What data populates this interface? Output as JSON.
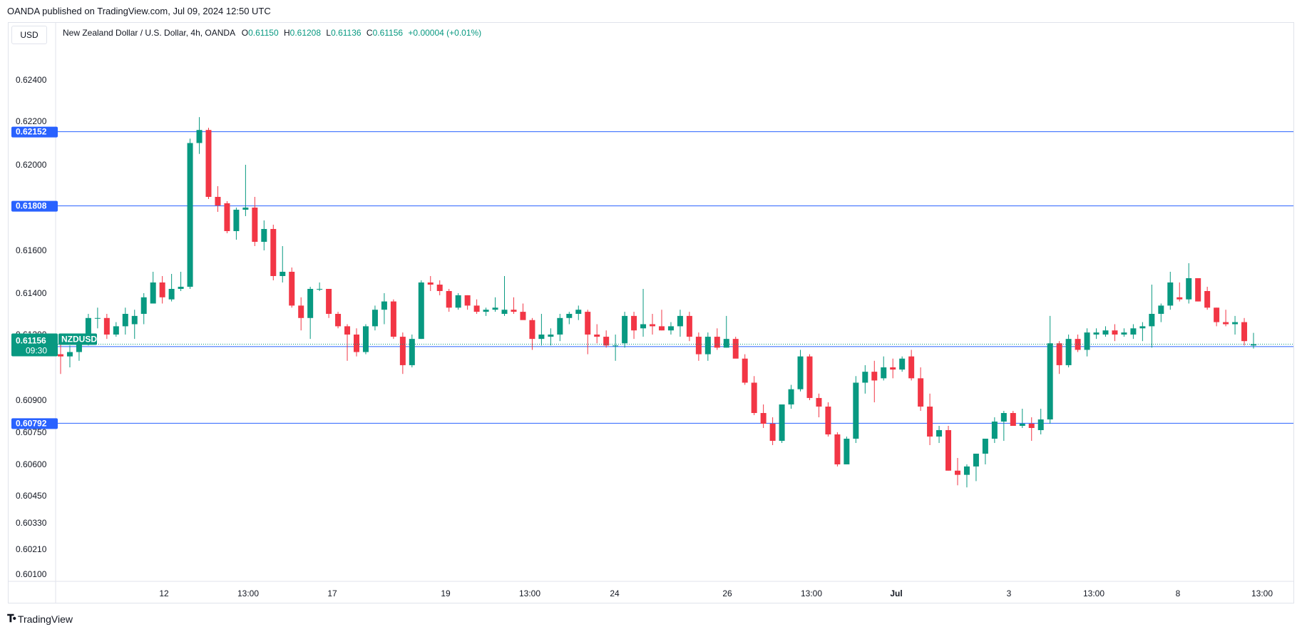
{
  "header": {
    "published": "OANDA published on TradingView.com, Jul 09, 2024 12:50 UTC",
    "currency": "USD",
    "legend": {
      "instrument": "New Zealand Dollar / U.S. Dollar, 4h, OANDA",
      "open_label": "O",
      "open": "0.61150",
      "high_label": "H",
      "high": "0.61208",
      "low_label": "L",
      "low": "0.61136",
      "close_label": "C",
      "close": "0.61156",
      "change": "+0.00004 (+0.01%)"
    }
  },
  "footer": {
    "brand": "TradingView",
    "brand_icon": "tradingview-logo-icon"
  },
  "colors": {
    "up": "#089981",
    "down": "#f23645",
    "level": "#2962ff",
    "grid": "#e0e3eb"
  },
  "chart_data": {
    "type": "candlestick",
    "symbol": "NZDUSD",
    "timeframe": "4h",
    "y_ticks": [
      "0.62400",
      "0.62200",
      "0.62000",
      "0.61600",
      "0.61400",
      "0.61200",
      "0.60900",
      "0.60750",
      "0.60600",
      "0.60450",
      "0.60330",
      "0.60210",
      "0.60100"
    ],
    "x_ticks": [
      "12",
      "13:00",
      "17",
      "19",
      "13:00",
      "24",
      "26",
      "13:00",
      "Jul",
      "3",
      "13:00",
      "8",
      "13:00"
    ],
    "levels": [
      "0.62152",
      "0.61808",
      "0.61145",
      "0.60792"
    ],
    "last_price": {
      "symbol": "NZDUSD",
      "price": "0.61156",
      "countdown": "09:30"
    },
    "candles": [
      [
        0.6111,
        0.6116,
        0.6102,
        0.611
      ],
      [
        0.611,
        0.6115,
        0.6105,
        0.6112
      ],
      [
        0.6112,
        0.612,
        0.6108,
        0.6118
      ],
      [
        0.6118,
        0.613,
        0.6115,
        0.6128
      ],
      [
        0.6128,
        0.6133,
        0.6123,
        0.6128
      ],
      [
        0.6128,
        0.613,
        0.6118,
        0.612
      ],
      [
        0.612,
        0.6126,
        0.6119,
        0.6124
      ],
      [
        0.6124,
        0.6133,
        0.612,
        0.613
      ],
      [
        0.6125,
        0.6132,
        0.6118,
        0.6129
      ],
      [
        0.613,
        0.614,
        0.6125,
        0.6138
      ],
      [
        0.6135,
        0.615,
        0.6135,
        0.6145
      ],
      [
        0.6145,
        0.6148,
        0.6135,
        0.6138
      ],
      [
        0.6137,
        0.6149,
        0.6136,
        0.6142
      ],
      [
        0.6142,
        0.615,
        0.6141,
        0.6143
      ],
      [
        0.6143,
        0.6212,
        0.6142,
        0.621
      ],
      [
        0.621,
        0.6222,
        0.6205,
        0.6216
      ],
      [
        0.6216,
        0.6217,
        0.6184,
        0.6185
      ],
      [
        0.6185,
        0.619,
        0.6178,
        0.6181
      ],
      [
        0.6182,
        0.6183,
        0.6168,
        0.6169
      ],
      [
        0.6169,
        0.618,
        0.6165,
        0.6179
      ],
      [
        0.6179,
        0.62,
        0.6176,
        0.618
      ],
      [
        0.618,
        0.6185,
        0.6162,
        0.6164
      ],
      [
        0.6164,
        0.6174,
        0.616,
        0.617
      ],
      [
        0.617,
        0.6172,
        0.6146,
        0.6148
      ],
      [
        0.6148,
        0.6162,
        0.6145,
        0.615
      ],
      [
        0.615,
        0.6152,
        0.6133,
        0.6134
      ],
      [
        0.6134,
        0.6138,
        0.6122,
        0.6128
      ],
      [
        0.6128,
        0.6143,
        0.6118,
        0.6142
      ],
      [
        0.6142,
        0.6145,
        0.6141,
        0.6142
      ],
      [
        0.6142,
        0.6142,
        0.6128,
        0.613
      ],
      [
        0.613,
        0.6131,
        0.6123,
        0.6124
      ],
      [
        0.6124,
        0.6125,
        0.6108,
        0.612
      ],
      [
        0.612,
        0.6123,
        0.611,
        0.6112
      ],
      [
        0.6112,
        0.6125,
        0.6111,
        0.6124
      ],
      [
        0.6124,
        0.6134,
        0.6122,
        0.6132
      ],
      [
        0.6132,
        0.614,
        0.6125,
        0.6136
      ],
      [
        0.6136,
        0.6137,
        0.6118,
        0.6119
      ],
      [
        0.6119,
        0.6121,
        0.6102,
        0.6106
      ],
      [
        0.6106,
        0.612,
        0.6105,
        0.6118
      ],
      [
        0.6118,
        0.6146,
        0.6118,
        0.6145
      ],
      [
        0.6145,
        0.6148,
        0.6141,
        0.6144
      ],
      [
        0.6144,
        0.6146,
        0.6139,
        0.6141
      ],
      [
        0.6141,
        0.6142,
        0.6131,
        0.6133
      ],
      [
        0.6133,
        0.614,
        0.6132,
        0.6139
      ],
      [
        0.6139,
        0.6139,
        0.6132,
        0.6134
      ],
      [
        0.6134,
        0.6137,
        0.613,
        0.6131
      ],
      [
        0.6131,
        0.6133,
        0.6129,
        0.6132
      ],
      [
        0.6132,
        0.6138,
        0.6131,
        0.6133
      ],
      [
        0.613,
        0.6148,
        0.6129,
        0.6132
      ],
      [
        0.6132,
        0.6138,
        0.613,
        0.6131
      ],
      [
        0.6131,
        0.6135,
        0.6128,
        0.6127
      ],
      [
        0.6127,
        0.6128,
        0.6113,
        0.6118
      ],
      [
        0.6118,
        0.613,
        0.6115,
        0.612
      ],
      [
        0.6119,
        0.6123,
        0.6115,
        0.612
      ],
      [
        0.612,
        0.613,
        0.6117,
        0.6128
      ],
      [
        0.6128,
        0.6131,
        0.6125,
        0.613
      ],
      [
        0.613,
        0.6134,
        0.6127,
        0.6132
      ],
      [
        0.6131,
        0.6132,
        0.6111,
        0.612
      ],
      [
        0.612,
        0.6125,
        0.6116,
        0.6119
      ],
      [
        0.6119,
        0.6122,
        0.6114,
        0.6115
      ],
      [
        0.6115,
        0.612,
        0.6108,
        0.6115
      ],
      [
        0.6116,
        0.6131,
        0.6114,
        0.6129
      ],
      [
        0.6129,
        0.6131,
        0.6118,
        0.6122
      ],
      [
        0.6123,
        0.6142,
        0.6119,
        0.6125
      ],
      [
        0.6125,
        0.613,
        0.612,
        0.6124
      ],
      [
        0.6124,
        0.6132,
        0.6122,
        0.6122
      ],
      [
        0.6122,
        0.6126,
        0.612,
        0.6124
      ],
      [
        0.6124,
        0.6132,
        0.6119,
        0.6129
      ],
      [
        0.6129,
        0.6131,
        0.6117,
        0.6119
      ],
      [
        0.6119,
        0.6121,
        0.6108,
        0.6111
      ],
      [
        0.6111,
        0.6121,
        0.6108,
        0.6119
      ],
      [
        0.6119,
        0.6123,
        0.6113,
        0.6114
      ],
      [
        0.6114,
        0.6129,
        0.6114,
        0.6118
      ],
      [
        0.6118,
        0.6119,
        0.611,
        0.6109
      ],
      [
        0.6109,
        0.6111,
        0.6097,
        0.6098
      ],
      [
        0.6098,
        0.6101,
        0.6083,
        0.6084
      ],
      [
        0.6084,
        0.6088,
        0.6077,
        0.6079
      ],
      [
        0.6079,
        0.6082,
        0.6069,
        0.6071
      ],
      [
        0.6071,
        0.6088,
        0.607,
        0.6088
      ],
      [
        0.6088,
        0.6097,
        0.6086,
        0.6095
      ],
      [
        0.6095,
        0.6113,
        0.6094,
        0.611
      ],
      [
        0.611,
        0.6111,
        0.609,
        0.6091
      ],
      [
        0.6091,
        0.6093,
        0.6082,
        0.6087
      ],
      [
        0.6087,
        0.6089,
        0.6073,
        0.6074
      ],
      [
        0.6074,
        0.6075,
        0.6059,
        0.606
      ],
      [
        0.606,
        0.6073,
        0.606,
        0.6072
      ],
      [
        0.6072,
        0.6101,
        0.607,
        0.6098
      ],
      [
        0.6098,
        0.6106,
        0.6093,
        0.6103
      ],
      [
        0.6103,
        0.6108,
        0.6089,
        0.6099
      ],
      [
        0.61,
        0.611,
        0.6099,
        0.6105
      ],
      [
        0.6105,
        0.6109,
        0.61,
        0.6104
      ],
      [
        0.6104,
        0.611,
        0.6103,
        0.6109
      ],
      [
        0.611,
        0.6113,
        0.6099,
        0.61
      ],
      [
        0.61,
        0.6105,
        0.6085,
        0.6087
      ],
      [
        0.6087,
        0.6093,
        0.6069,
        0.6073
      ],
      [
        0.6073,
        0.6078,
        0.607,
        0.6076
      ],
      [
        0.6076,
        0.6078,
        0.6057,
        0.6057
      ],
      [
        0.6057,
        0.6063,
        0.605,
        0.6055
      ],
      [
        0.6055,
        0.606,
        0.6049,
        0.6059
      ],
      [
        0.6059,
        0.6064,
        0.6052,
        0.6065
      ],
      [
        0.6065,
        0.6072,
        0.606,
        0.6072
      ],
      [
        0.6072,
        0.6082,
        0.607,
        0.608
      ],
      [
        0.608,
        0.6085,
        0.6071,
        0.6084
      ],
      [
        0.6084,
        0.6085,
        0.6078,
        0.6078
      ],
      [
        0.6078,
        0.6086,
        0.6077,
        0.6079
      ],
      [
        0.6079,
        0.6082,
        0.6071,
        0.6077
      ],
      [
        0.6076,
        0.6086,
        0.6074,
        0.6081
      ],
      [
        0.6081,
        0.6129,
        0.6079,
        0.6116
      ],
      [
        0.6116,
        0.6117,
        0.6102,
        0.6106
      ],
      [
        0.6106,
        0.612,
        0.6105,
        0.6118
      ],
      [
        0.6118,
        0.612,
        0.6112,
        0.6113
      ],
      [
        0.6113,
        0.6123,
        0.611,
        0.6121
      ],
      [
        0.612,
        0.6123,
        0.6118,
        0.6121
      ],
      [
        0.612,
        0.6124,
        0.6119,
        0.6122
      ],
      [
        0.6122,
        0.6125,
        0.6117,
        0.612
      ],
      [
        0.612,
        0.6123,
        0.6119,
        0.6121
      ],
      [
        0.612,
        0.6125,
        0.6118,
        0.6123
      ],
      [
        0.6123,
        0.6126,
        0.6117,
        0.6124
      ],
      [
        0.6124,
        0.6144,
        0.6114,
        0.613
      ],
      [
        0.613,
        0.6135,
        0.6126,
        0.6134
      ],
      [
        0.6134,
        0.615,
        0.6132,
        0.6145
      ],
      [
        0.6138,
        0.6145,
        0.6136,
        0.6137
      ],
      [
        0.6137,
        0.6154,
        0.6135,
        0.6147
      ],
      [
        0.6147,
        0.6147,
        0.6136,
        0.6136
      ],
      [
        0.6141,
        0.6143,
        0.6132,
        0.6133
      ],
      [
        0.6133,
        0.6133,
        0.6124,
        0.6126
      ],
      [
        0.6126,
        0.6132,
        0.6124,
        0.6125
      ],
      [
        0.6125,
        0.6129,
        0.612,
        0.6126
      ],
      [
        0.6126,
        0.6128,
        0.6115,
        0.6117
      ],
      [
        0.6115,
        0.61208,
        0.61136,
        0.61156
      ]
    ]
  }
}
